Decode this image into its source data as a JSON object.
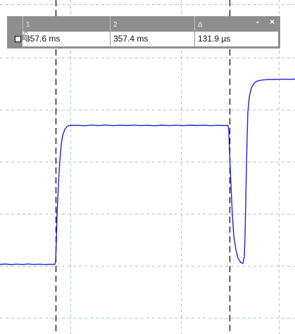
{
  "cursor_panel": {
    "headers": [
      "1",
      "2",
      "Δ"
    ],
    "values": {
      "cursor1": "357.6 ms",
      "cursor2": "357.4 ms",
      "delta": "131.9 µs"
    },
    "minimize_label": "-",
    "close_label": "×",
    "icons": [
      "checkbox-icon",
      "minimize-icon",
      "close-icon",
      "lock-icon"
    ]
  },
  "colors": {
    "trace": "#1f22d6",
    "grid": "#9fc9dc",
    "cursor": "#111111",
    "panel": "#8e8e8e"
  }
}
